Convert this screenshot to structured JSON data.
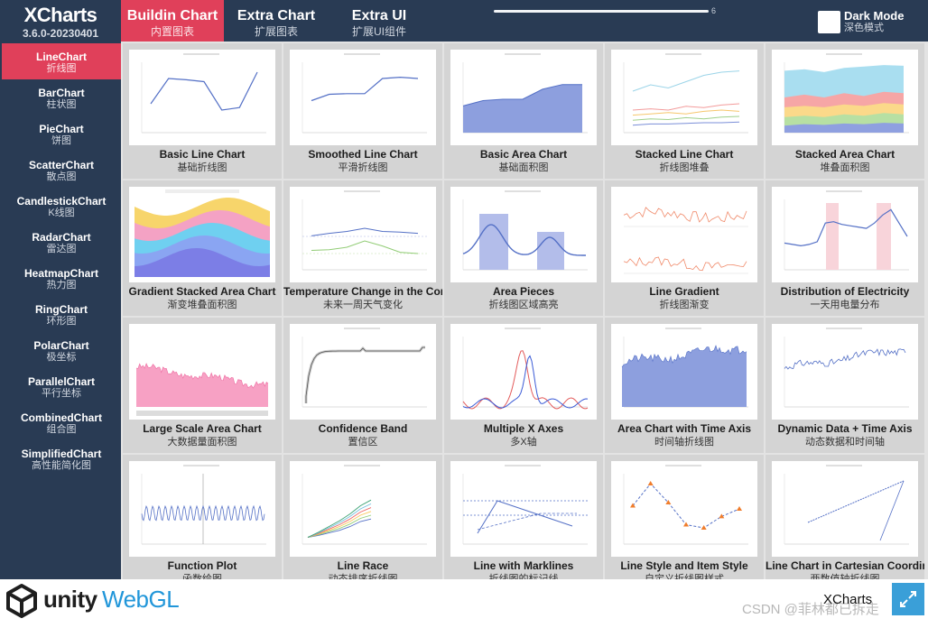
{
  "app": {
    "title": "XCharts",
    "version": "3.6.0-20230401"
  },
  "top_tabs": [
    {
      "label": "Buildin Chart",
      "sub": "内置图表"
    },
    {
      "label": "Extra Chart",
      "sub": "扩展图表"
    },
    {
      "label": "Extra UI",
      "sub": "扩展UI组件"
    }
  ],
  "slider": {
    "value": "6"
  },
  "dark_mode": {
    "label": "Dark Mode",
    "sub": "深色模式"
  },
  "sidebar": [
    {
      "label": "LineChart",
      "sub": "折线图"
    },
    {
      "label": "BarChart",
      "sub": "柱状图"
    },
    {
      "label": "PieChart",
      "sub": "饼图"
    },
    {
      "label": "ScatterChart",
      "sub": "散点图"
    },
    {
      "label": "CandlestickChart",
      "sub": "K线图"
    },
    {
      "label": "RadarChart",
      "sub": "雷达图"
    },
    {
      "label": "HeatmapChart",
      "sub": "热力图"
    },
    {
      "label": "RingChart",
      "sub": "环形图"
    },
    {
      "label": "PolarChart",
      "sub": "极坐标"
    },
    {
      "label": "ParallelChart",
      "sub": "平行坐标"
    },
    {
      "label": "CombinedChart",
      "sub": "组合图"
    },
    {
      "label": "SimplifiedChart",
      "sub": "高性能简化图"
    }
  ],
  "cards": [
    {
      "name": "Basic Line Chart",
      "cn": "基础折线图",
      "icon": "basic-line"
    },
    {
      "name": "Smoothed Line Chart",
      "cn": "平滑折线图",
      "icon": "smooth-line"
    },
    {
      "name": "Basic Area Chart",
      "cn": "基础面积图",
      "icon": "basic-area"
    },
    {
      "name": "Stacked Line Chart",
      "cn": "折线图堆叠",
      "icon": "stacked-line"
    },
    {
      "name": "Stacked Area Chart",
      "cn": "堆叠面积图",
      "icon": "stacked-area"
    },
    {
      "name": "Gradient Stacked Area Chart",
      "cn": "渐变堆叠面积图",
      "icon": "gradient-stacked"
    },
    {
      "name": "Temperature Change in the Coming",
      "cn": "未来一周天气变化",
      "icon": "temperature"
    },
    {
      "name": "Area Pieces",
      "cn": "折线图区域高亮",
      "icon": "area-pieces"
    },
    {
      "name": "Line Gradient",
      "cn": "折线图渐变",
      "icon": "line-gradient"
    },
    {
      "name": "Distribution of Electricity",
      "cn": "一天用电量分布",
      "icon": "electricity"
    },
    {
      "name": "Large Scale Area Chart",
      "cn": "大数据量面积图",
      "icon": "large-area"
    },
    {
      "name": "Confidence Band",
      "cn": "置信区",
      "icon": "confidence"
    },
    {
      "name": "Multiple X Axes",
      "cn": "多X轴",
      "icon": "multi-x"
    },
    {
      "name": "Area Chart with Time Axis",
      "cn": "时间轴折线图",
      "icon": "time-area"
    },
    {
      "name": "Dynamic Data + Time Axis",
      "cn": "动态数据和时间轴",
      "icon": "dynamic"
    },
    {
      "name": "Function Plot",
      "cn": "函数绘图",
      "icon": "function"
    },
    {
      "name": "Line Race",
      "cn": "动态排序折线图",
      "icon": "line-race"
    },
    {
      "name": "Line with Marklines",
      "cn": "折线图的标记线",
      "icon": "marklines"
    },
    {
      "name": "Line Style and Item Style",
      "cn": "自定义折线图样式",
      "icon": "item-style"
    },
    {
      "name": "Line Chart in Cartesian Coordinate",
      "cn": "两数值轴折线图",
      "icon": "cartesian"
    }
  ],
  "footer": {
    "unity": "unity",
    "webgl": "WebGL",
    "title": "XCharts",
    "watermark": "CSDN @菲林都已拆走"
  },
  "colors": {
    "navy": "#293b54",
    "accent": "#e0405a",
    "line_blue": "#5470c6",
    "unity_blue": "#2196d9"
  }
}
